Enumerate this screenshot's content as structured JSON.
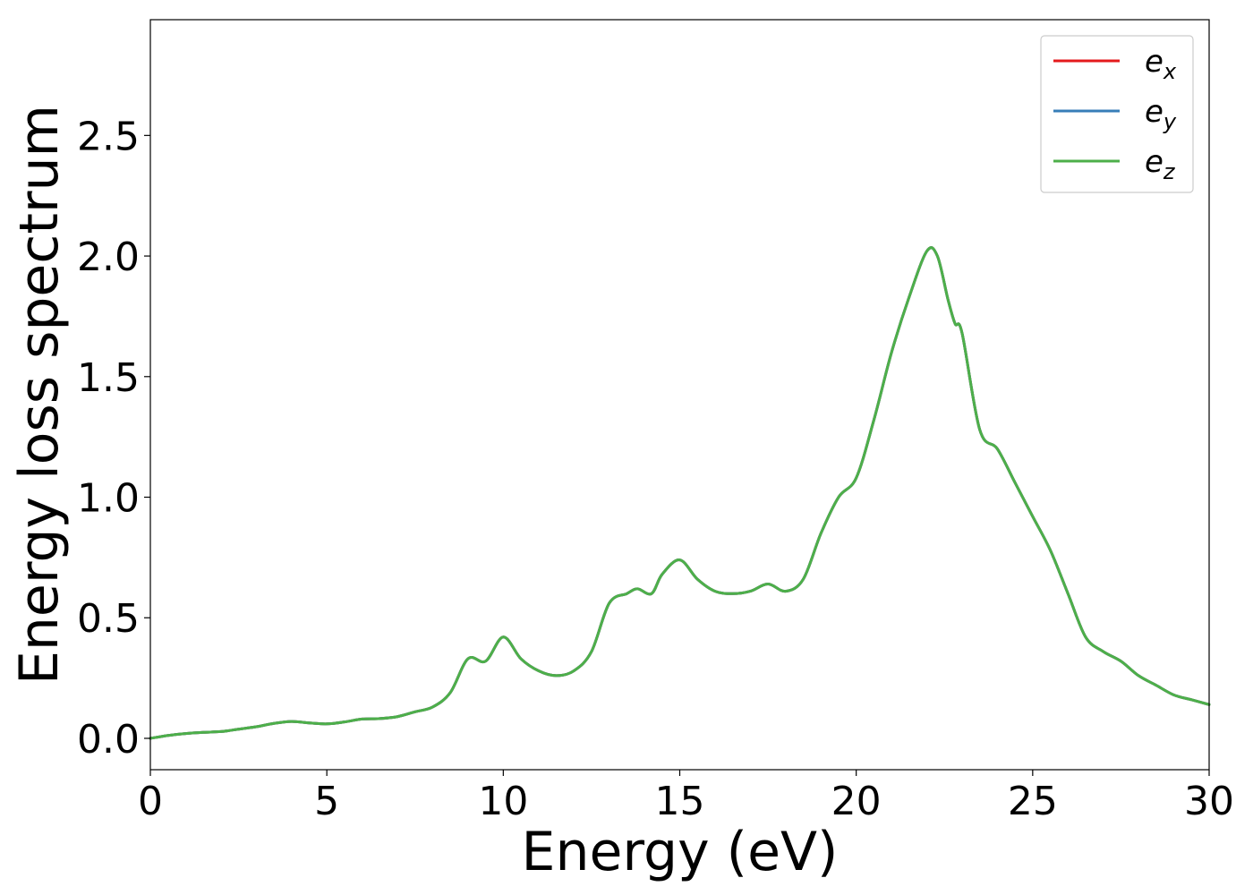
{
  "chart_data": {
    "type": "line",
    "title": "",
    "xlabel": "Energy (eV)",
    "ylabel": "Energy loss spectrum",
    "xlim": [
      0,
      30
    ],
    "ylim": [
      -0.13,
      2.98
    ],
    "xticks": [
      0,
      5,
      10,
      15,
      20,
      25,
      30
    ],
    "xtick_labels": [
      "0",
      "5",
      "10",
      "15",
      "20",
      "25",
      "30"
    ],
    "yticks": [
      0.0,
      0.5,
      1.0,
      1.5,
      2.0,
      2.5
    ],
    "ytick_labels": [
      "0.0",
      "0.5",
      "1.0",
      "1.5",
      "2.0",
      "2.5"
    ],
    "grid": false,
    "legend_position": "top-right",
    "x": [
      0,
      0.5,
      1,
      1.5,
      2,
      2.5,
      3,
      3.5,
      4,
      4.5,
      5,
      5.5,
      6,
      6.5,
      7,
      7.5,
      8,
      8.5,
      9,
      9.5,
      10,
      10.5,
      11,
      11.5,
      12,
      12.5,
      13,
      13.5,
      13.8,
      14.2,
      14.5,
      15,
      15.5,
      16,
      16.5,
      17,
      17.5,
      18,
      18.5,
      19,
      19.5,
      20,
      20.5,
      21,
      21.5,
      22,
      22.3,
      22.6,
      22.8,
      23,
      23.5,
      24,
      24.5,
      25,
      25.5,
      26,
      26.5,
      27,
      27.5,
      28,
      28.5,
      29,
      29.5,
      30
    ],
    "series": [
      {
        "name": "e_x",
        "label_base": "e",
        "label_sub": "x",
        "color": "#e41a1c",
        "values": [
          0.0,
          0.012,
          0.02,
          0.025,
          0.028,
          0.038,
          0.048,
          0.062,
          0.07,
          0.064,
          0.06,
          0.068,
          0.08,
          0.082,
          0.09,
          0.11,
          0.13,
          0.19,
          0.33,
          0.32,
          0.42,
          0.33,
          0.28,
          0.26,
          0.28,
          0.36,
          0.56,
          0.6,
          0.62,
          0.6,
          0.68,
          0.74,
          0.66,
          0.61,
          0.6,
          0.61,
          0.64,
          0.61,
          0.66,
          0.85,
          1.0,
          1.08,
          1.32,
          1.6,
          1.83,
          2.02,
          2.0,
          1.82,
          1.72,
          1.68,
          1.28,
          1.2,
          1.06,
          0.92,
          0.78,
          0.6,
          0.42,
          0.36,
          0.32,
          0.26,
          0.22,
          0.18,
          0.16,
          0.14
        ]
      },
      {
        "name": "e_y",
        "label_base": "e",
        "label_sub": "y",
        "color": "#377eb8",
        "values": [
          0.0,
          0.012,
          0.02,
          0.025,
          0.028,
          0.038,
          0.048,
          0.062,
          0.07,
          0.064,
          0.06,
          0.068,
          0.08,
          0.082,
          0.09,
          0.11,
          0.13,
          0.19,
          0.33,
          0.32,
          0.42,
          0.33,
          0.28,
          0.26,
          0.28,
          0.36,
          0.56,
          0.6,
          0.62,
          0.6,
          0.68,
          0.74,
          0.66,
          0.61,
          0.6,
          0.61,
          0.64,
          0.61,
          0.66,
          0.85,
          1.0,
          1.08,
          1.32,
          1.6,
          1.83,
          2.02,
          2.0,
          1.82,
          1.72,
          1.68,
          1.28,
          1.2,
          1.06,
          0.92,
          0.78,
          0.6,
          0.42,
          0.36,
          0.32,
          0.26,
          0.22,
          0.18,
          0.16,
          0.14
        ]
      },
      {
        "name": "e_z",
        "label_base": "e",
        "label_sub": "z",
        "color": "#4daf4a",
        "values": [
          0.0,
          0.012,
          0.02,
          0.025,
          0.028,
          0.038,
          0.048,
          0.062,
          0.07,
          0.064,
          0.06,
          0.068,
          0.08,
          0.082,
          0.09,
          0.11,
          0.13,
          0.19,
          0.33,
          0.32,
          0.42,
          0.33,
          0.28,
          0.26,
          0.28,
          0.36,
          0.56,
          0.6,
          0.62,
          0.6,
          0.68,
          0.74,
          0.66,
          0.61,
          0.6,
          0.61,
          0.64,
          0.61,
          0.66,
          0.85,
          1.0,
          1.08,
          1.32,
          1.6,
          1.83,
          2.02,
          2.0,
          1.82,
          1.72,
          1.68,
          1.28,
          1.2,
          1.06,
          0.92,
          0.78,
          0.6,
          0.42,
          0.36,
          0.32,
          0.26,
          0.22,
          0.18,
          0.16,
          0.14
        ]
      }
    ]
  }
}
